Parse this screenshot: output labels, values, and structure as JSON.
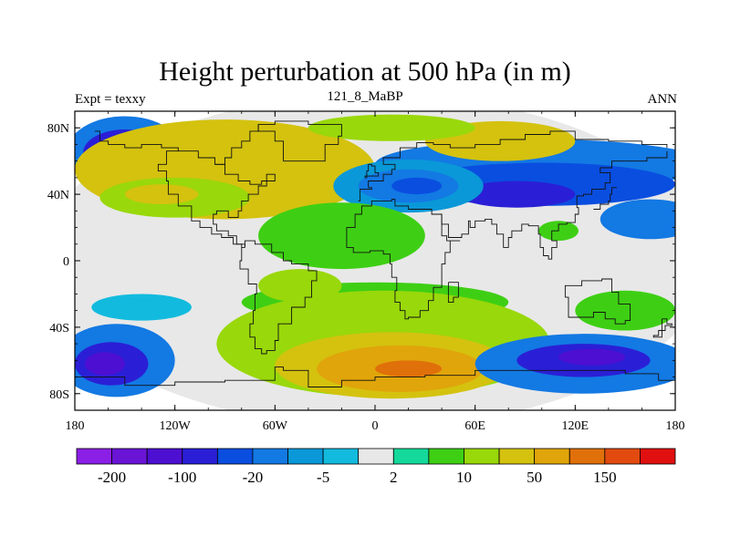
{
  "chart_data": {
    "type": "heatmap",
    "title": "Height perturbation at 500 hPa (in m)",
    "subtitle_left": "Expt = texxy",
    "subtitle_center": "121_8_MaBP",
    "subtitle_right": "ANN",
    "x_ticks": [
      {
        "value": -180,
        "label": "180"
      },
      {
        "value": -120,
        "label": "120W"
      },
      {
        "value": -60,
        "label": "60W"
      },
      {
        "value": 0,
        "label": "0"
      },
      {
        "value": 60,
        "label": "60E"
      },
      {
        "value": 120,
        "label": "120E"
      },
      {
        "value": 180,
        "label": "180"
      }
    ],
    "y_ticks": [
      {
        "value": 80,
        "label": "80N"
      },
      {
        "value": 40,
        "label": "40N"
      },
      {
        "value": 0,
        "label": "0"
      },
      {
        "value": -40,
        "label": "40S"
      },
      {
        "value": -80,
        "label": "80S"
      }
    ],
    "xlim": [
      -180,
      180
    ],
    "ylim": [
      -90,
      90
    ],
    "colorbar": {
      "colors": [
        "#8b1fe6",
        "#6a14d6",
        "#4d0fd1",
        "#2a1fd6",
        "#0a4ee0",
        "#1379e3",
        "#0a98d8",
        "#12bbde",
        "#e8e8e8",
        "#14d99a",
        "#3ecf14",
        "#99d80a",
        "#d4c20f",
        "#e0a50a",
        "#e0700a",
        "#e24a10",
        "#e01010"
      ],
      "labels": [
        {
          "edge": 1,
          "label": "-200"
        },
        {
          "edge": 3,
          "label": "-100"
        },
        {
          "edge": 5,
          "label": "-20"
        },
        {
          "edge": 7,
          "label": "-5"
        },
        {
          "edge": 9,
          "label": "2"
        },
        {
          "edge": 11,
          "label": "10"
        },
        {
          "edge": 13,
          "label": "50"
        },
        {
          "edge": 15,
          "label": "150"
        }
      ]
    },
    "regions": [
      {
        "level": 8,
        "lon": 0,
        "lat": 0,
        "rlon": 200,
        "rlat": 100
      },
      {
        "level": 5,
        "lon": -150,
        "lat": 65,
        "rlon": 35,
        "rlat": 22
      },
      {
        "level": 3,
        "lon": -150,
        "lat": 65,
        "rlon": 25,
        "rlat": 14
      },
      {
        "level": 2,
        "lon": -155,
        "lat": 65,
        "rlon": 14,
        "rlat": 8
      },
      {
        "level": 5,
        "lon": 100,
        "lat": 58,
        "rlon": 100,
        "rlat": 15
      },
      {
        "level": 4,
        "lon": 100,
        "lat": 46,
        "rlon": 80,
        "rlat": 13
      },
      {
        "level": 3,
        "lon": 85,
        "lat": 40,
        "rlon": 35,
        "rlat": 8
      },
      {
        "level": 5,
        "lon": 165,
        "lat": 25,
        "rlon": 30,
        "rlat": 12
      },
      {
        "level": 12,
        "lon": -90,
        "lat": 55,
        "rlon": 90,
        "rlat": 30
      },
      {
        "level": 11,
        "lon": -120,
        "lat": 38,
        "rlon": 45,
        "rlat": 12
      },
      {
        "level": 12,
        "lon": -128,
        "lat": 40,
        "rlon": 22,
        "rlat": 6
      },
      {
        "level": 12,
        "lon": 75,
        "lat": 72,
        "rlon": 45,
        "rlat": 12
      },
      {
        "level": 11,
        "lon": 10,
        "lat": 80,
        "rlon": 50,
        "rlat": 8
      },
      {
        "level": 6,
        "lon": 20,
        "lat": 45,
        "rlon": 45,
        "rlat": 16
      },
      {
        "level": 5,
        "lon": 20,
        "lat": 45,
        "rlon": 30,
        "rlat": 10
      },
      {
        "level": 4,
        "lon": 25,
        "lat": 45,
        "rlon": 15,
        "rlat": 5
      },
      {
        "level": 10,
        "lon": -20,
        "lat": 15,
        "rlon": 50,
        "rlat": 20
      },
      {
        "level": 10,
        "lon": 0,
        "lat": -25,
        "rlon": 80,
        "rlat": 12
      },
      {
        "level": 11,
        "lon": -45,
        "lat": -15,
        "rlon": 25,
        "rlat": 10
      },
      {
        "level": 11,
        "lon": 5,
        "lat": -50,
        "rlon": 100,
        "rlat": 32
      },
      {
        "level": 12,
        "lon": 10,
        "lat": -63,
        "rlon": 70,
        "rlat": 20
      },
      {
        "level": 13,
        "lon": 15,
        "lat": -65,
        "rlon": 50,
        "rlat": 14
      },
      {
        "level": 14,
        "lon": 20,
        "lat": -65,
        "rlon": 20,
        "rlat": 5
      },
      {
        "level": 5,
        "lon": -155,
        "lat": -60,
        "rlon": 35,
        "rlat": 22
      },
      {
        "level": 3,
        "lon": -158,
        "lat": -62,
        "rlon": 22,
        "rlat": 13
      },
      {
        "level": 2,
        "lon": -162,
        "lat": -62,
        "rlon": 12,
        "rlat": 7
      },
      {
        "level": 5,
        "lon": 125,
        "lat": -62,
        "rlon": 65,
        "rlat": 18
      },
      {
        "level": 3,
        "lon": 125,
        "lat": -60,
        "rlon": 40,
        "rlat": 10
      },
      {
        "level": 2,
        "lon": 130,
        "lat": -58,
        "rlon": 20,
        "rlat": 5
      },
      {
        "level": 7,
        "lon": -140,
        "lat": -28,
        "rlon": 30,
        "rlat": 8
      },
      {
        "level": 10,
        "lon": 150,
        "lat": -30,
        "rlon": 30,
        "rlat": 12
      },
      {
        "level": 10,
        "lon": 110,
        "lat": 18,
        "rlon": 12,
        "rlat": 6
      }
    ],
    "coastlines": [
      [
        [
          -168,
          78
        ],
        [
          -165,
          72
        ],
        [
          -160,
          70
        ],
        [
          -150,
          68
        ],
        [
          -140,
          70
        ],
        [
          -128,
          68
        ],
        [
          -118,
          66
        ],
        [
          -106,
          62
        ],
        [
          -96,
          58
        ],
        [
          -90,
          62
        ],
        [
          -86,
          68
        ],
        [
          -80,
          72
        ],
        [
          -75,
          78
        ],
        [
          -70,
          82
        ]
      ],
      [
        [
          -96,
          58
        ],
        [
          -90,
          52
        ],
        [
          -82,
          48
        ],
        [
          -75,
          46
        ],
        [
          -68,
          48
        ],
        [
          -60,
          52
        ],
        [
          -65,
          45
        ],
        [
          -70,
          40
        ],
        [
          -76,
          36
        ],
        [
          -80,
          30
        ],
        [
          -82,
          26
        ],
        [
          -88,
          30
        ],
        [
          -95,
          28
        ],
        [
          -97,
          22
        ],
        [
          -95,
          18
        ],
        [
          -88,
          15
        ],
        [
          -83,
          10
        ],
        [
          -78,
          8
        ]
      ],
      [
        [
          -118,
          66
        ],
        [
          -125,
          58
        ],
        [
          -130,
          54
        ],
        [
          -125,
          48
        ],
        [
          -124,
          40
        ],
        [
          -118,
          33
        ],
        [
          -110,
          24
        ],
        [
          -105,
          20
        ],
        [
          -98,
          16
        ],
        [
          -92,
          14
        ],
        [
          -85,
          10
        ],
        [
          -80,
          8
        ]
      ],
      [
        [
          -78,
          8
        ],
        [
          -80,
          0
        ],
        [
          -81,
          -5
        ],
        [
          -76,
          -14
        ],
        [
          -71,
          -20
        ],
        [
          -72,
          -30
        ],
        [
          -73,
          -38
        ],
        [
          -75,
          -46
        ],
        [
          -72,
          -53
        ],
        [
          -68,
          -56
        ],
        [
          -65,
          -54
        ],
        [
          -60,
          -48
        ],
        [
          -58,
          -38
        ],
        [
          -50,
          -28
        ],
        [
          -42,
          -22
        ],
        [
          -38,
          -12
        ],
        [
          -35,
          -6
        ],
        [
          -40,
          -2
        ],
        [
          -50,
          0
        ],
        [
          -55,
          5
        ],
        [
          -62,
          10
        ],
        [
          -72,
          12
        ],
        [
          -78,
          8
        ]
      ],
      [
        [
          -55,
          60
        ],
        [
          -45,
          60
        ],
        [
          -30,
          70
        ],
        [
          -22,
          75
        ],
        [
          -20,
          82
        ],
        [
          -40,
          84
        ],
        [
          -60,
          82
        ],
        [
          -70,
          78
        ],
        [
          -60,
          72
        ],
        [
          -55,
          60
        ]
      ],
      [
        [
          -10,
          36
        ],
        [
          -9,
          43
        ],
        [
          -2,
          44
        ],
        [
          -4,
          48
        ],
        [
          5,
          52
        ],
        [
          10,
          55
        ],
        [
          12,
          58
        ],
        [
          5,
          62
        ],
        [
          15,
          68
        ],
        [
          25,
          71
        ],
        [
          35,
          70
        ],
        [
          45,
          68
        ],
        [
          60,
          70
        ],
        [
          75,
          73
        ],
        [
          90,
          76
        ],
        [
          105,
          78
        ],
        [
          120,
          73
        ],
        [
          140,
          72
        ],
        [
          160,
          70
        ],
        [
          175,
          68
        ]
      ],
      [
        [
          -17,
          15
        ],
        [
          -17,
          20
        ],
        [
          -12,
          28
        ],
        [
          -8,
          33
        ],
        [
          -2,
          36
        ],
        [
          10,
          37
        ],
        [
          12,
          33
        ],
        [
          20,
          31
        ],
        [
          30,
          31
        ],
        [
          34,
          28
        ],
        [
          40,
          15
        ],
        [
          43,
          12
        ],
        [
          51,
          12
        ],
        [
          45,
          5
        ],
        [
          42,
          -2
        ],
        [
          40,
          -10
        ],
        [
          40,
          -16
        ],
        [
          35,
          -24
        ],
        [
          32,
          -30
        ],
        [
          27,
          -34
        ],
        [
          20,
          -35
        ],
        [
          18,
          -30
        ],
        [
          15,
          -25
        ],
        [
          12,
          -18
        ],
        [
          13,
          -10
        ],
        [
          10,
          -2
        ],
        [
          9,
          4
        ],
        [
          5,
          6
        ],
        [
          -3,
          5
        ],
        [
          -8,
          5
        ],
        [
          -13,
          8
        ],
        [
          -17,
          15
        ]
      ],
      [
        [
          34,
          28
        ],
        [
          40,
          22
        ],
        [
          44,
          14
        ],
        [
          52,
          16
        ],
        [
          56,
          24
        ],
        [
          57,
          20
        ],
        [
          60,
          24
        ],
        [
          66,
          25
        ],
        [
          70,
          22
        ],
        [
          73,
          16
        ],
        [
          77,
          8
        ],
        [
          80,
          14
        ],
        [
          82,
          18
        ],
        [
          88,
          22
        ],
        [
          92,
          21
        ],
        [
          98,
          16
        ],
        [
          99,
          8
        ],
        [
          101,
          3
        ],
        [
          104,
          1
        ],
        [
          106,
          8
        ],
        [
          109,
          12
        ],
        [
          106,
          18
        ],
        [
          110,
          22
        ],
        [
          115,
          23
        ],
        [
          120,
          28
        ],
        [
          122,
          32
        ],
        [
          121,
          39
        ],
        [
          125,
          40
        ],
        [
          130,
          43
        ],
        [
          138,
          47
        ],
        [
          141,
          53
        ],
        [
          135,
          56
        ],
        [
          142,
          60
        ],
        [
          155,
          60
        ],
        [
          163,
          62
        ],
        [
          175,
          66
        ]
      ],
      [
        [
          114,
          -22
        ],
        [
          116,
          -34
        ],
        [
          124,
          -34
        ],
        [
          131,
          -31
        ],
        [
          138,
          -35
        ],
        [
          144,
          -38
        ],
        [
          150,
          -36
        ],
        [
          153,
          -26
        ],
        [
          146,
          -19
        ],
        [
          142,
          -11
        ],
        [
          136,
          -12
        ],
        [
          130,
          -12
        ],
        [
          124,
          -15
        ],
        [
          114,
          -22
        ]
      ],
      [
        [
          -180,
          -70
        ],
        [
          -150,
          -75
        ],
        [
          -120,
          -73
        ],
        [
          -90,
          -72
        ],
        [
          -60,
          -64
        ],
        [
          -55,
          -66
        ],
        [
          -40,
          -76
        ],
        [
          -20,
          -72
        ],
        [
          0,
          -70
        ],
        [
          30,
          -69
        ],
        [
          60,
          -66
        ],
        [
          90,
          -66
        ],
        [
          120,
          -66
        ],
        [
          150,
          -68
        ],
        [
          170,
          -72
        ],
        [
          180,
          -75
        ]
      ],
      [
        [
          131,
          31
        ],
        [
          135,
          34
        ],
        [
          140,
          36
        ],
        [
          141,
          40
        ],
        [
          142,
          44
        ],
        [
          145,
          44
        ]
      ],
      [
        [
          -6,
          50
        ],
        [
          -5,
          54
        ],
        [
          -4,
          58
        ],
        [
          -2,
          57
        ],
        [
          0,
          53
        ],
        [
          2,
          51
        ],
        [
          -6,
          50
        ]
      ],
      [
        [
          172,
          -35
        ],
        [
          175,
          -38
        ],
        [
          178,
          -39
        ],
        [
          174,
          -42
        ],
        [
          170,
          -45
        ],
        [
          167,
          -46
        ],
        [
          172,
          -35
        ]
      ],
      [
        [
          44,
          -13
        ],
        [
          50,
          -15
        ],
        [
          50,
          -22
        ],
        [
          47,
          -25
        ],
        [
          44,
          -20
        ],
        [
          44,
          -13
        ]
      ]
    ]
  }
}
